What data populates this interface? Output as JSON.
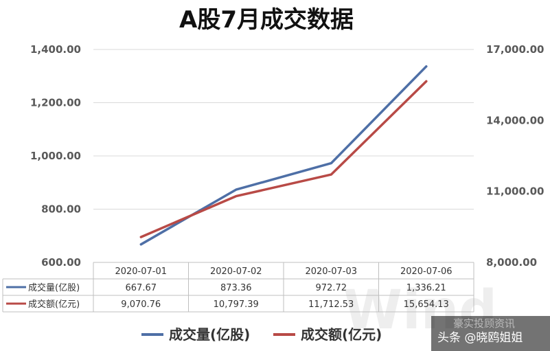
{
  "chart_data": {
    "type": "line",
    "title": "A股7月成交数据",
    "categories": [
      "2020-07-01",
      "2020-07-02",
      "2020-07-03",
      "2020-07-06"
    ],
    "series": [
      {
        "name": "成交量(亿股)",
        "values": [
          667.67,
          873.36,
          972.72,
          1336.21
        ],
        "value_labels": [
          "667.67",
          "873.36",
          "972.72",
          "1,336.21"
        ],
        "axis": "left",
        "color": "#4e6fa6"
      },
      {
        "name": "成交额(亿元)",
        "values": [
          9070.76,
          10797.39,
          11712.53,
          15654.13
        ],
        "value_labels": [
          "9,070.76",
          "10,797.39",
          "11,712.53",
          "15,654.13"
        ],
        "axis": "right",
        "color": "#b84a46"
      }
    ],
    "yleft": {
      "ylim": [
        600,
        1400
      ],
      "ticks": [
        600,
        800,
        1000,
        1200,
        1400
      ],
      "tick_labels": [
        "600.00",
        "800.00",
        "1,000.00",
        "1,200.00",
        "1,400.00"
      ]
    },
    "yright": {
      "ylim": [
        8000,
        17000
      ],
      "ticks": [
        8000,
        11000,
        14000,
        17000
      ],
      "tick_labels": [
        "8,000.00",
        "11,000.00",
        "14,000.00",
        "17,000.00"
      ]
    },
    "grid": true,
    "legend_placement": "bottom",
    "data_table": true
  },
  "watermark": {
    "text": "Wind",
    "color": "#eeeeee"
  },
  "credit": {
    "faint_text": "豪实投顾资讯",
    "text": "头条 @晓鸥姐姐"
  },
  "colors": {
    "gridline": "#d9d9d9",
    "table_border": "#bfbfbf",
    "text": "#595959"
  }
}
